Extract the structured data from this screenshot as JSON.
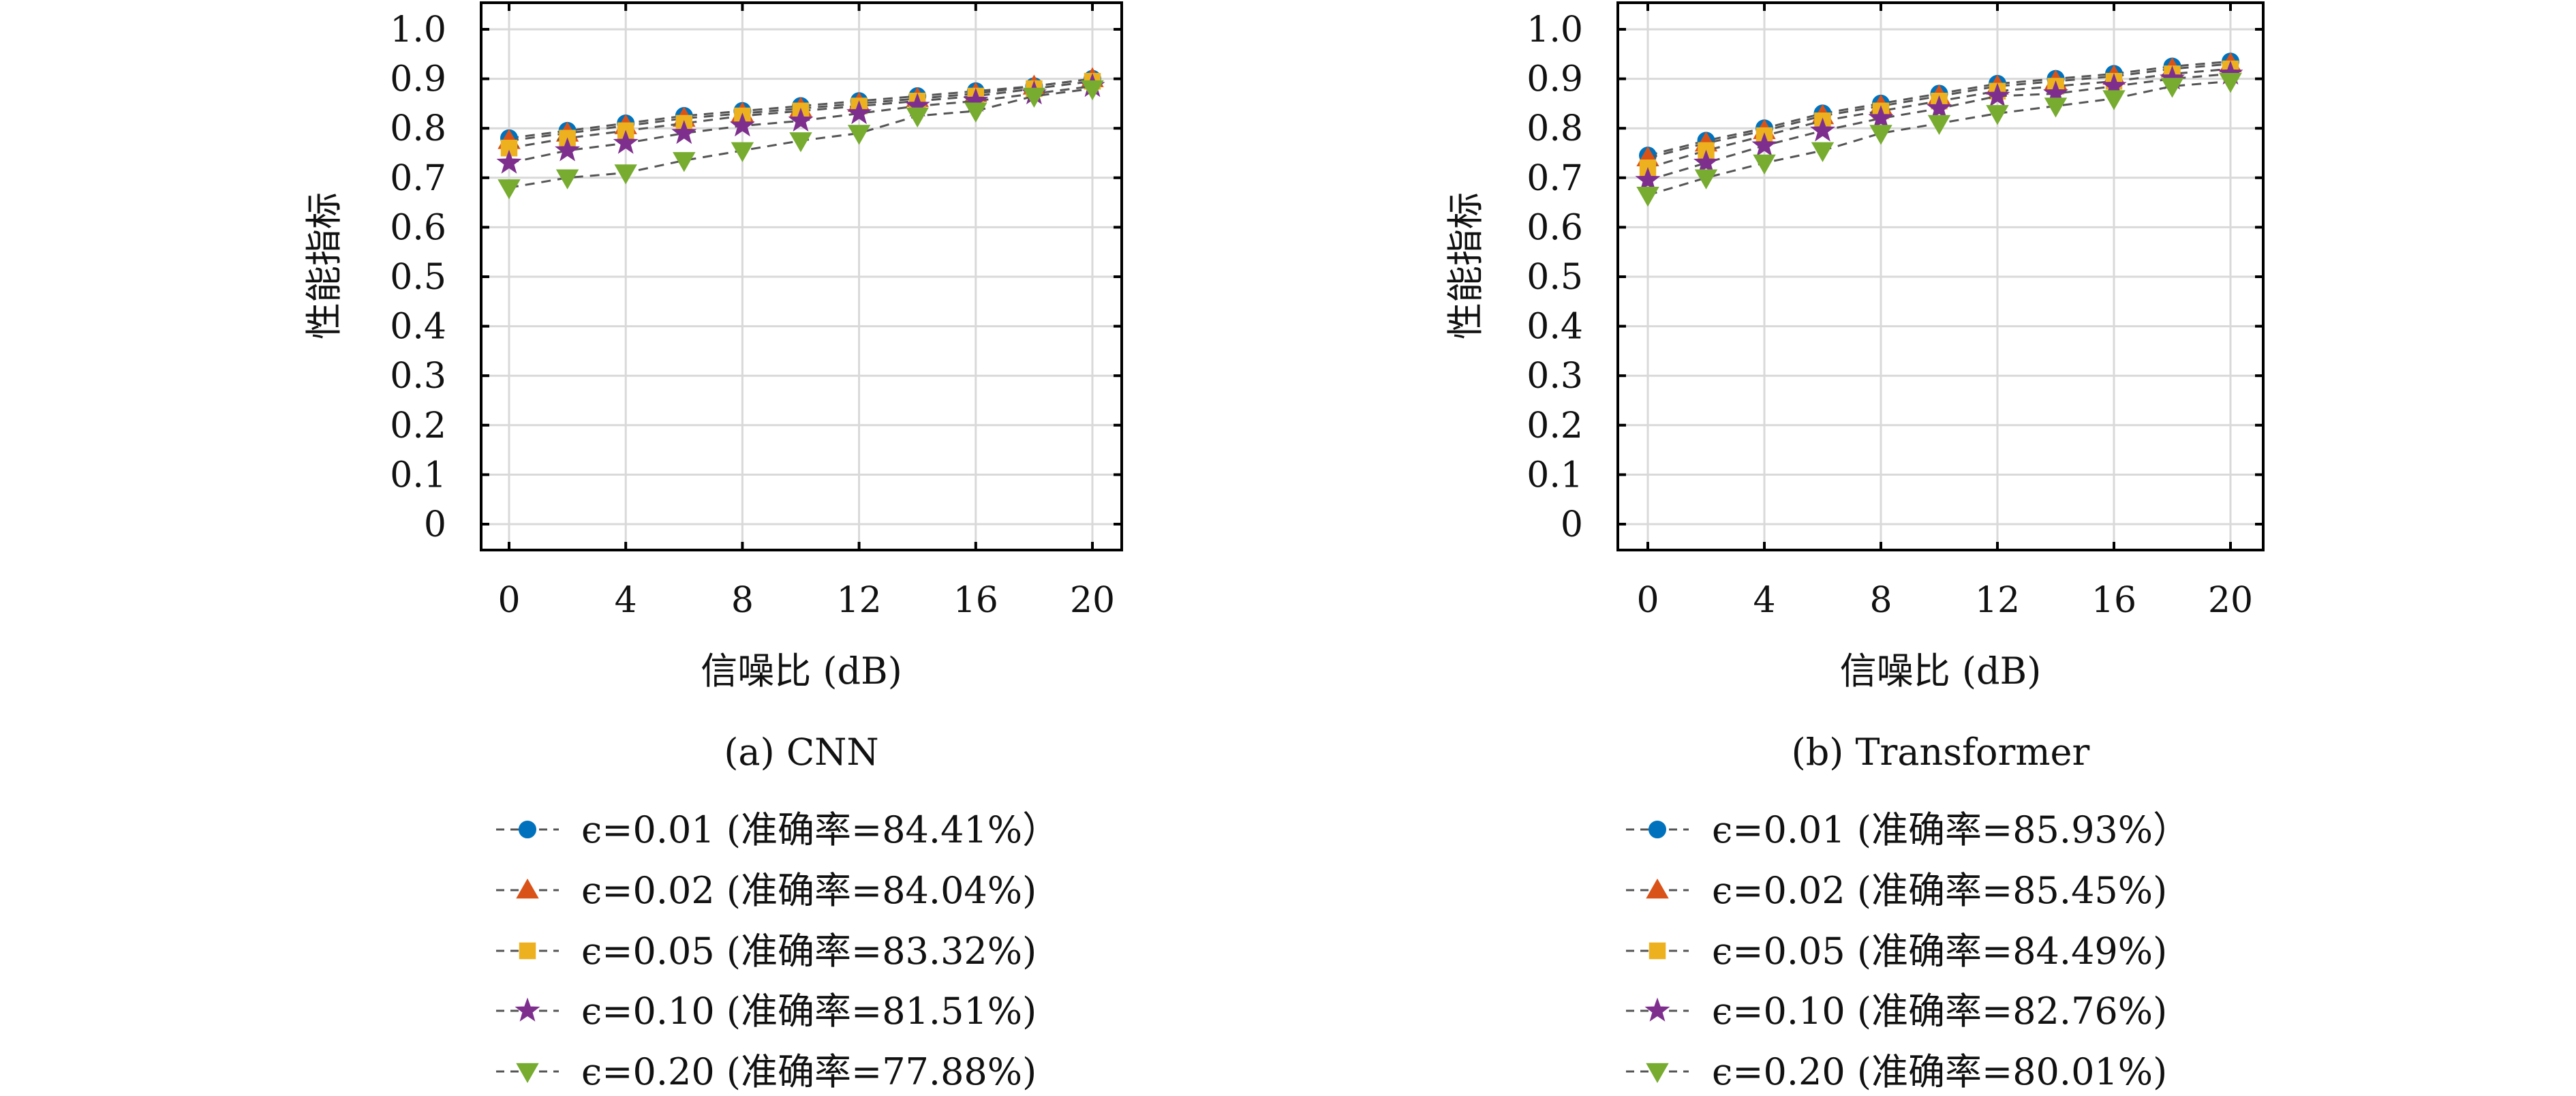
{
  "colors": {
    "eps_0.01": "#0072BD",
    "eps_0.02": "#D95319",
    "eps_0.05": "#EDB120",
    "eps_0.10": "#7E2F8E",
    "eps_0.20": "#77AC30",
    "line": "#555555",
    "grid": "#d9d9d9"
  },
  "markers": [
    "circle",
    "triangle-up",
    "square",
    "star",
    "triangle-down"
  ],
  "chart_data": [
    {
      "type": "line",
      "caption": "(a) CNN",
      "xlabel": "信噪比 (dB)",
      "ylabel": "性能指标",
      "xlim": [
        0,
        20
      ],
      "ylim": [
        0,
        1.0
      ],
      "grid": true,
      "legend_placement": "below",
      "x_ticks": [
        "0",
        "4",
        "8",
        "12",
        "16",
        "20"
      ],
      "y_ticks": [
        "0",
        "0.1",
        "0.2",
        "0.3",
        "0.4",
        "0.5",
        "0.6",
        "0.7",
        "0.8",
        "0.9",
        "1.0"
      ],
      "x": [
        0,
        2,
        4,
        6,
        8,
        10,
        12,
        14,
        16,
        18,
        20
      ],
      "series": [
        {
          "name": "ϵ=0.01 (准确率=84.41%）",
          "values": [
            0.78,
            0.795,
            0.81,
            0.825,
            0.835,
            0.845,
            0.855,
            0.865,
            0.875,
            0.885,
            0.9
          ]
        },
        {
          "name": "ϵ=0.02 (准确率=84.04%)",
          "values": [
            0.775,
            0.79,
            0.805,
            0.82,
            0.83,
            0.84,
            0.85,
            0.86,
            0.87,
            0.885,
            0.9
          ]
        },
        {
          "name": "ϵ=0.05 (准确率=83.32%)",
          "values": [
            0.76,
            0.78,
            0.795,
            0.81,
            0.825,
            0.835,
            0.845,
            0.855,
            0.865,
            0.88,
            0.895
          ]
        },
        {
          "name": "ϵ=0.10 (准确率=81.51%)",
          "values": [
            0.73,
            0.755,
            0.77,
            0.79,
            0.805,
            0.815,
            0.83,
            0.845,
            0.855,
            0.87,
            0.885
          ]
        },
        {
          "name": "ϵ=0.20 (准确率=77.88%)",
          "values": [
            0.68,
            0.7,
            0.71,
            0.735,
            0.755,
            0.775,
            0.79,
            0.825,
            0.835,
            0.865,
            0.88
          ]
        }
      ]
    },
    {
      "type": "line",
      "caption": "(b) Transformer",
      "xlabel": "信噪比 (dB)",
      "ylabel": "性能指标",
      "xlim": [
        0,
        20
      ],
      "ylim": [
        0,
        1.0
      ],
      "grid": true,
      "legend_placement": "below",
      "x_ticks": [
        "0",
        "4",
        "8",
        "12",
        "16",
        "20"
      ],
      "y_ticks": [
        "0",
        "0.1",
        "0.2",
        "0.3",
        "0.4",
        "0.5",
        "0.6",
        "0.7",
        "0.8",
        "0.9",
        "1.0"
      ],
      "x": [
        0,
        2,
        4,
        6,
        8,
        10,
        12,
        14,
        16,
        18,
        20
      ],
      "series": [
        {
          "name": "ϵ=0.01 (准确率=85.93%）",
          "values": [
            0.745,
            0.775,
            0.8,
            0.83,
            0.85,
            0.87,
            0.89,
            0.9,
            0.91,
            0.925,
            0.935
          ]
        },
        {
          "name": "ϵ=0.02 (准确率=85.45%)",
          "values": [
            0.74,
            0.77,
            0.795,
            0.825,
            0.845,
            0.865,
            0.885,
            0.895,
            0.905,
            0.92,
            0.93
          ]
        },
        {
          "name": "ϵ=0.05 (准确率=84.49%)",
          "values": [
            0.72,
            0.755,
            0.785,
            0.815,
            0.835,
            0.855,
            0.875,
            0.885,
            0.895,
            0.91,
            0.92
          ]
        },
        {
          "name": "ϵ=0.10 (准确率=82.76%)",
          "values": [
            0.695,
            0.73,
            0.765,
            0.795,
            0.82,
            0.84,
            0.865,
            0.87,
            0.885,
            0.9,
            0.91
          ]
        },
        {
          "name": "ϵ=0.20 (准确率=80.01%)",
          "values": [
            0.665,
            0.7,
            0.73,
            0.755,
            0.79,
            0.81,
            0.83,
            0.845,
            0.86,
            0.885,
            0.895
          ]
        }
      ]
    }
  ]
}
